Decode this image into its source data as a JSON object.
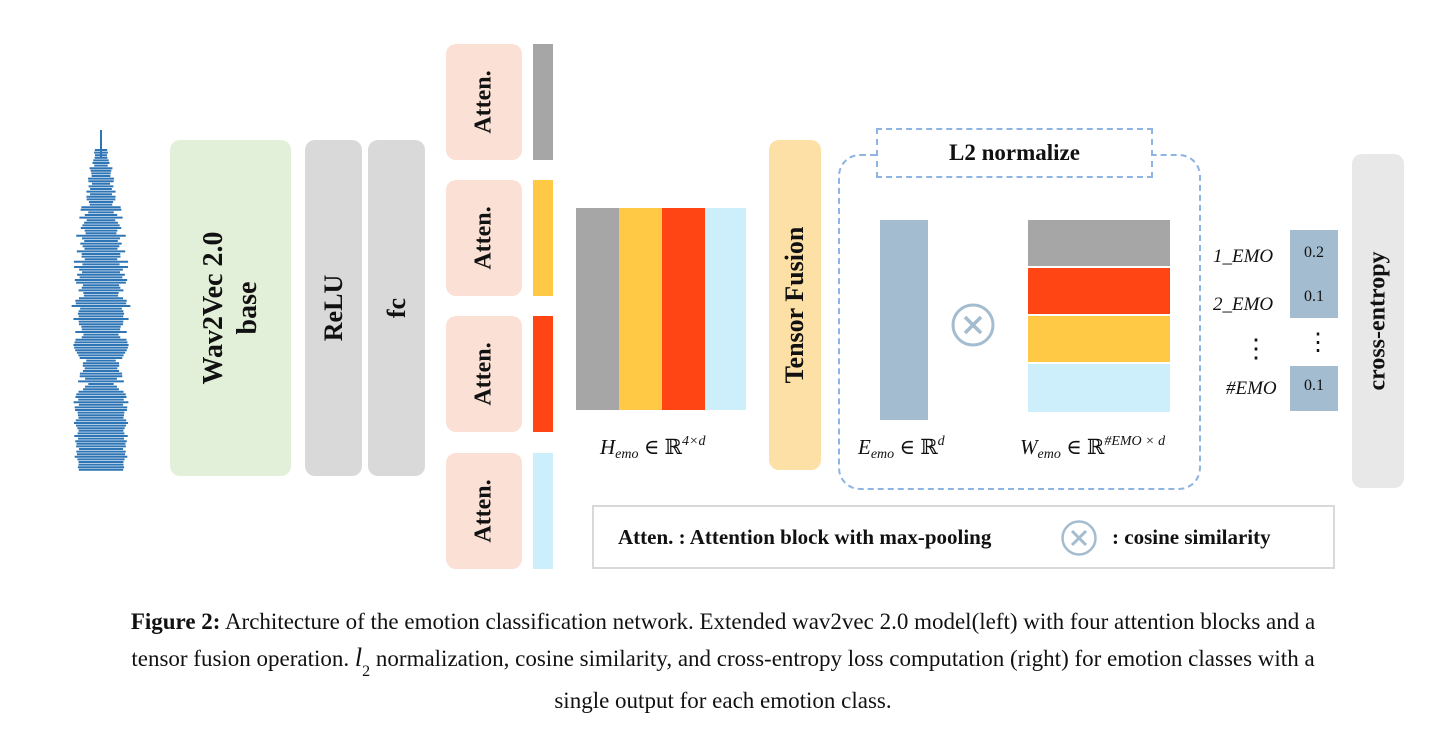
{
  "colors": {
    "wav2vec": "#e2f0d9",
    "relu": "#d9d9d9",
    "atten": "#fbe0d5",
    "gray": "#a6a6a6",
    "yellow": "#ffc845",
    "red": "#ff4514",
    "lightblue": "#cdeefb",
    "tensor_fusion": "#fde0a6",
    "emb_vec": "#a3bccf",
    "dashed": "#8eb4e3",
    "score_bg": "#a3bccf",
    "cross_entropy": "#e8e8e8"
  },
  "blocks": {
    "wav2vec_line1": "Wav2Vec 2.0",
    "wav2vec_line2": "base",
    "relu": "ReLU",
    "fc": "fc",
    "atten": [
      "Atten.",
      "Atten.",
      "Atten.",
      "Atten."
    ],
    "tensor_fusion": "Tensor Fusion",
    "l2_normalize": "L2 normalize",
    "cross_entropy": "cross-entropy"
  },
  "math": {
    "h_emo": {
      "base": "H",
      "sub": "emo",
      "rel": " ∈ ℝ",
      "sup": "4×d"
    },
    "e_emo": {
      "base": "E",
      "sub": "emo",
      "rel": " ∈ ℝ",
      "sup": "d"
    },
    "w_emo": {
      "base": "W",
      "sub": "emo",
      "rel": " ∈ ℝ",
      "sup": "#EMO × d"
    }
  },
  "emotions": {
    "labels": [
      "1_EMO",
      "2_EMO",
      "#EMO"
    ],
    "scores": [
      "0.2",
      "0.1",
      "0.1"
    ],
    "dots": "⋮"
  },
  "legend": {
    "atten_text": "Atten. : Attention block with max-pooling",
    "cos_text": ": cosine similarity"
  },
  "caption": {
    "label": "Figure 2:",
    "line1": " Architecture of the emotion classification network. Extended wav2vec 2.0 model(left) with four attention blocks and a",
    "line2a": "tensor fusion operation. ",
    "l2_symbol": "l",
    "l2_sub": "2",
    "line2b": " normalization, cosine similarity, and cross-entropy loss computation (right) for emotion classes with a",
    "line3": "single output for each emotion class."
  }
}
